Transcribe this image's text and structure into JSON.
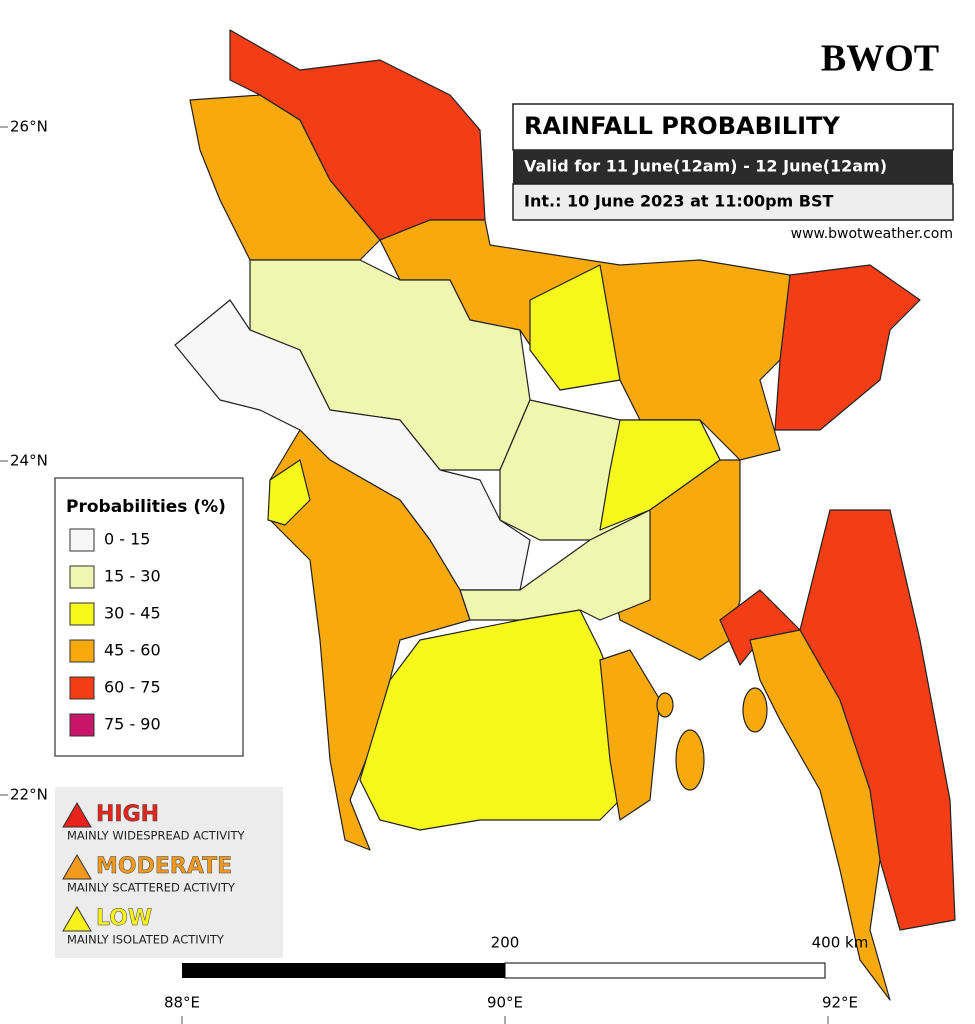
{
  "header": {
    "logo": "BWOT",
    "title": "RAINFALL PROBABILITY",
    "valid": "Valid for 11 June(12am) - 12 June(12am)",
    "issued": "Int.: 10 June 2023 at 11:00pm BST",
    "website": "www.bwotweather.com"
  },
  "axes": {
    "lat_labels": [
      "26°N",
      "24°N",
      "22°N"
    ],
    "lon_labels": [
      "88°E",
      "90°E",
      "92°E"
    ]
  },
  "legend": {
    "title": "Probabilities (%)",
    "items": [
      {
        "label": "0 - 15",
        "color": "#f7f7f7"
      },
      {
        "label": "15 - 30",
        "color": "#eef6b0"
      },
      {
        "label": "30 - 45",
        "color": "#f6f71a"
      },
      {
        "label": "45 - 60",
        "color": "#f8a90c"
      },
      {
        "label": "60 - 75",
        "color": "#f23d17"
      },
      {
        "label": "75 - 90",
        "color": "#c9166b"
      }
    ]
  },
  "risk": [
    {
      "level": "HIGH",
      "desc": "MAINLY WIDESPREAD ACTIVITY"
    },
    {
      "level": "MODERATE",
      "desc": "MAINLY SCATTERED ACTIVITY"
    },
    {
      "level": "LOW",
      "desc": "MAINLY ISOLATED ACTIVITY"
    }
  ],
  "scale": {
    "mid": "200",
    "end": "400 km"
  }
}
